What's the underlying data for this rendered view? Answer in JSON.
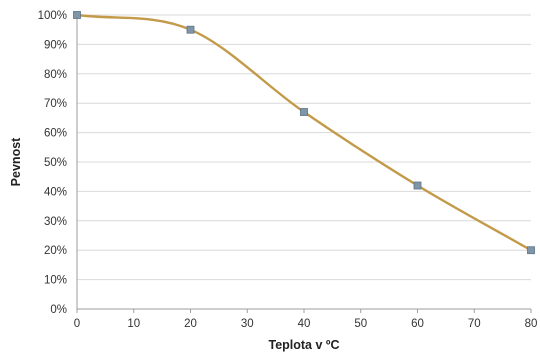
{
  "chart_data": {
    "type": "line",
    "title": "",
    "xlabel": "Teplota v ºC",
    "ylabel": "Pevnost",
    "x_ticks": [
      "0",
      "10",
      "20",
      "30",
      "40",
      "50",
      "60",
      "70",
      "80"
    ],
    "y_ticks": [
      "0%",
      "10%",
      "20%",
      "30%",
      "40%",
      "50%",
      "60%",
      "70%",
      "80%",
      "90%",
      "100%"
    ],
    "xlim": [
      0,
      80
    ],
    "ylim": [
      0,
      100
    ],
    "grid": "horizontal",
    "legend": "none",
    "series": [
      {
        "x": [
          0,
          20,
          40,
          60,
          80
        ],
        "y": [
          100,
          95,
          67,
          42,
          20
        ],
        "line_color": "#c39a49",
        "marker_color": "#7f96a8",
        "marker": "square",
        "smooth": true
      }
    ]
  }
}
